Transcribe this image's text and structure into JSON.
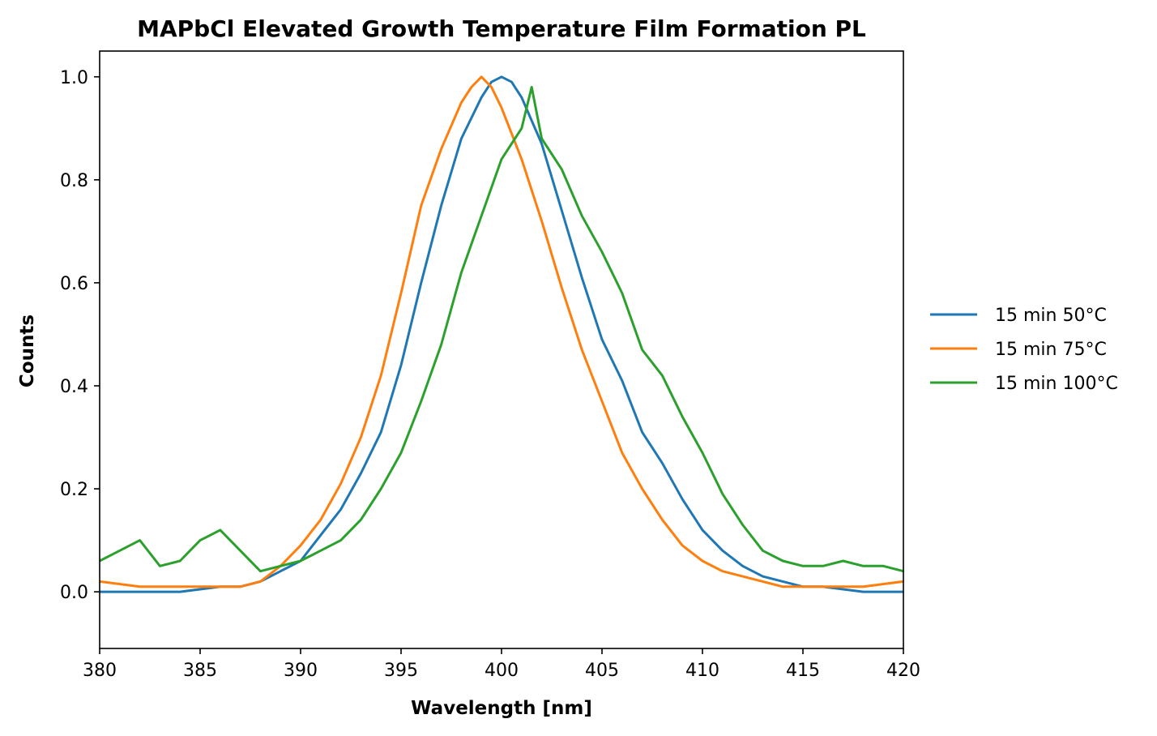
{
  "chart_data": {
    "type": "line",
    "title": "MAPbCl Elevated Growth Temperature Film Formation PL",
    "xlabel": "Wavelength [nm]",
    "ylabel": "Counts",
    "xlim": [
      380,
      420
    ],
    "ylim": [
      -0.11,
      1.05
    ],
    "xticks": [
      380,
      385,
      390,
      395,
      400,
      405,
      410,
      415,
      420
    ],
    "yticks": [
      0.0,
      0.2,
      0.4,
      0.6,
      0.8,
      1.0
    ],
    "xtick_labels": [
      "380",
      "385",
      "390",
      "395",
      "400",
      "405",
      "410",
      "415",
      "420"
    ],
    "ytick_labels": [
      "0.0",
      "0.2",
      "0.4",
      "0.6",
      "0.8",
      "1.0"
    ],
    "grid": false,
    "legend_position": "outside-right",
    "series": [
      {
        "name": "15 min 50°C",
        "color": "#1f77b4",
        "x": [
          380,
          382,
          384,
          386,
          387,
          388,
          389,
          390,
          391,
          392,
          393,
          394,
          395,
          396,
          397,
          398,
          399,
          399.5,
          400,
          400.5,
          401,
          402,
          403,
          404,
          405,
          406,
          407,
          408,
          409,
          410,
          411,
          412,
          413,
          414,
          415,
          416,
          418,
          420
        ],
        "y": [
          0.0,
          0.0,
          0.0,
          0.01,
          0.01,
          0.02,
          0.04,
          0.06,
          0.11,
          0.16,
          0.23,
          0.31,
          0.44,
          0.6,
          0.75,
          0.88,
          0.96,
          0.99,
          1.0,
          0.99,
          0.96,
          0.87,
          0.74,
          0.61,
          0.49,
          0.41,
          0.31,
          0.25,
          0.18,
          0.12,
          0.08,
          0.05,
          0.03,
          0.02,
          0.01,
          0.01,
          0.0,
          0.0
        ]
      },
      {
        "name": "15 min 75°C",
        "color": "#ff7f0e",
        "x": [
          380,
          382,
          384,
          386,
          387,
          388,
          389,
          390,
          391,
          392,
          393,
          394,
          395,
          396,
          397,
          398,
          398.5,
          399,
          399.5,
          400,
          401,
          402,
          403,
          404,
          405,
          406,
          407,
          408,
          409,
          410,
          411,
          412,
          413,
          414,
          415,
          416,
          418,
          420
        ],
        "y": [
          0.02,
          0.01,
          0.01,
          0.01,
          0.01,
          0.02,
          0.05,
          0.09,
          0.14,
          0.21,
          0.3,
          0.42,
          0.58,
          0.75,
          0.86,
          0.95,
          0.98,
          1.0,
          0.98,
          0.94,
          0.84,
          0.72,
          0.59,
          0.47,
          0.37,
          0.27,
          0.2,
          0.14,
          0.09,
          0.06,
          0.04,
          0.03,
          0.02,
          0.01,
          0.01,
          0.01,
          0.01,
          0.02
        ]
      },
      {
        "name": "15 min 100°C",
        "color": "#2ca02c",
        "x": [
          380,
          381,
          382,
          383,
          384,
          385,
          386,
          387,
          388,
          389,
          390,
          391,
          392,
          393,
          394,
          395,
          396,
          397,
          398,
          399,
          400,
          401,
          401.5,
          402,
          403,
          404,
          405,
          406,
          407,
          408,
          409,
          410,
          411,
          412,
          413,
          414,
          415,
          416,
          417,
          418,
          419,
          420
        ],
        "y": [
          0.06,
          0.08,
          0.1,
          0.05,
          0.06,
          0.1,
          0.12,
          0.08,
          0.04,
          0.05,
          0.06,
          0.08,
          0.1,
          0.14,
          0.2,
          0.27,
          0.37,
          0.48,
          0.62,
          0.73,
          0.84,
          0.9,
          0.98,
          0.88,
          0.82,
          0.73,
          0.66,
          0.58,
          0.47,
          0.42,
          0.34,
          0.27,
          0.19,
          0.13,
          0.08,
          0.06,
          0.05,
          0.05,
          0.06,
          0.05,
          0.05,
          0.04
        ]
      }
    ]
  }
}
